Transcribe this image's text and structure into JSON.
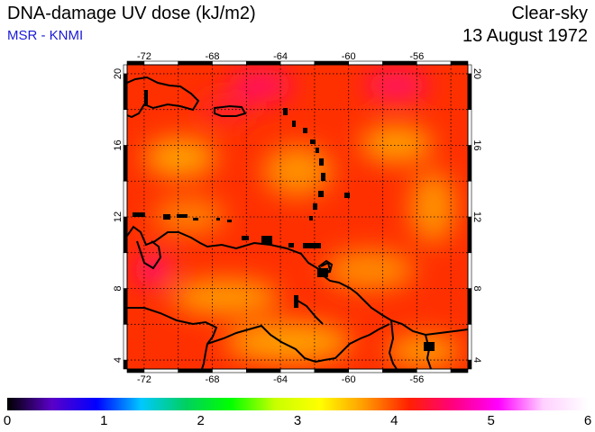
{
  "header": {
    "title": "DNA-damage UV dose (kJ/m2)",
    "subtitle": "MSR - KNMI",
    "sky_condition": "Clear-sky",
    "date": "13 August 1972"
  },
  "map": {
    "lon_range": [
      -73,
      -53
    ],
    "lat_range": [
      3.5,
      20.5
    ],
    "lon_ticks": [
      "-72",
      "-68",
      "-64",
      "-60",
      "-56"
    ],
    "lat_ticks": [
      "20",
      "16",
      "12",
      "8",
      "4"
    ],
    "grid": "dotted",
    "field_color": "#ff3000",
    "coastline_color": "#000000"
  },
  "colorbar": {
    "labels": [
      "0",
      "1",
      "2",
      "3",
      "4",
      "5",
      "6"
    ],
    "colors": [
      "#000000",
      "#5a00c8",
      "#0000ff",
      "#00c8ff",
      "#00d060",
      "#00ff00",
      "#c8ff00",
      "#ffff00",
      "#ff9b00",
      "#ff2000",
      "#ff0080",
      "#ff00ff",
      "#ffd0ff",
      "#ffffff"
    ]
  }
}
